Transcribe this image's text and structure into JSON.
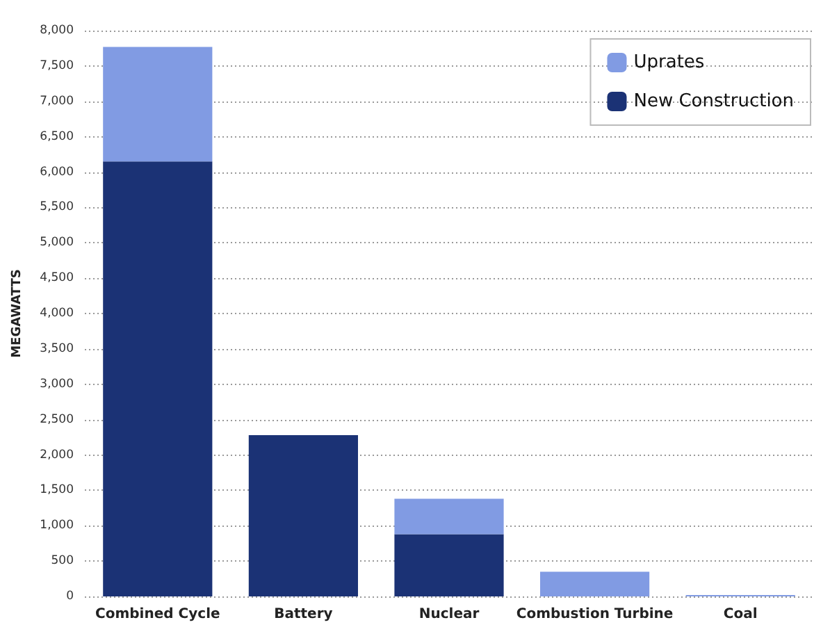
{
  "chart_data": {
    "type": "bar",
    "stacked": true,
    "ylabel": "MEGAWATTS",
    "categories": [
      "Combined Cycle",
      "Battery",
      "Nuclear",
      "Combustion Turbine",
      "Coal"
    ],
    "series": [
      {
        "name": "New Construction",
        "color": "#1b3275",
        "values": [
          6150,
          2280,
          880,
          0,
          0
        ]
      },
      {
        "name": "Uprates",
        "color": "#819be3",
        "values": [
          1620,
          0,
          500,
          350,
          20
        ]
      }
    ],
    "ylim": [
      0,
      8000
    ],
    "yticks": [
      0,
      500,
      {
        "value": 1000,
        "label": "1,000"
      },
      {
        "value": 1500,
        "label": "1,500"
      },
      {
        "value": 2000,
        "label": "2,000"
      },
      {
        "value": 2500,
        "label": "2,500"
      },
      {
        "value": 3000,
        "label": "3,000"
      },
      {
        "value": 3500,
        "label": "3,500"
      },
      {
        "value": 4000,
        "label": "4,000"
      },
      {
        "value": 4500,
        "label": "4,500"
      },
      {
        "value": 5000,
        "label": "5,000"
      },
      {
        "value": 5500,
        "label": "5,500"
      },
      {
        "value": 6000,
        "label": "6,000"
      },
      {
        "value": 6500,
        "label": "6,500"
      },
      {
        "value": 7000,
        "label": "7,000"
      },
      {
        "value": 7500,
        "label": "7,500"
      },
      {
        "value": 8000,
        "label": "8,000"
      }
    ],
    "grid": "y",
    "legend": "top right"
  }
}
